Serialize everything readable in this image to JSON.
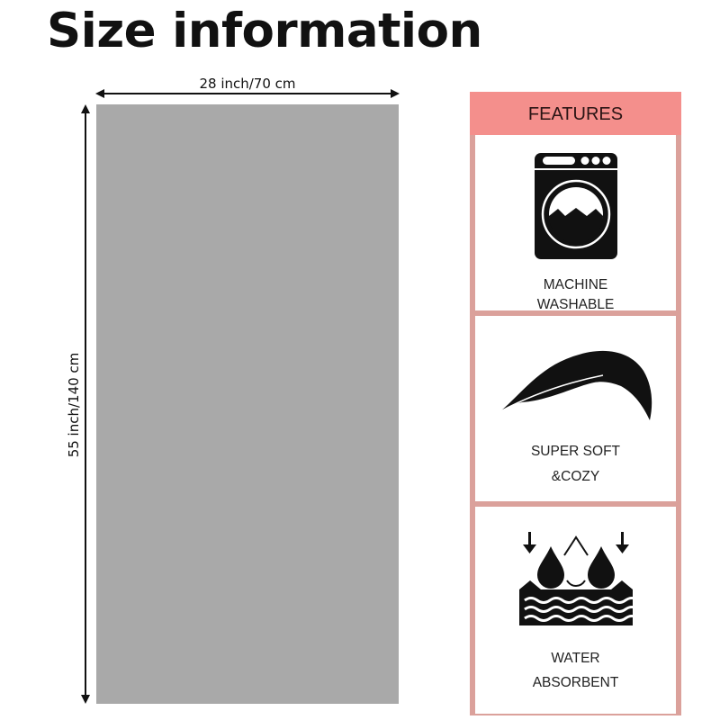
{
  "title": "Size information",
  "dimensions": {
    "width": "28 inch/70 cm",
    "height": "55 inch/140 cm"
  },
  "towel_color": "#a9a9a9",
  "features": {
    "header": "FEATURES",
    "header_color": "#f48f8c",
    "border_color": "#dba19b",
    "items": [
      {
        "icon": "washing-machine-icon",
        "line1": "MACHINE",
        "line2": "WASHABLE"
      },
      {
        "icon": "feather-icon",
        "line1": "SUPER SOFT",
        "line2": "&COZY"
      },
      {
        "icon": "water-absorb-icon",
        "line1": "WATER",
        "line2": "ABSORBENT"
      }
    ]
  }
}
